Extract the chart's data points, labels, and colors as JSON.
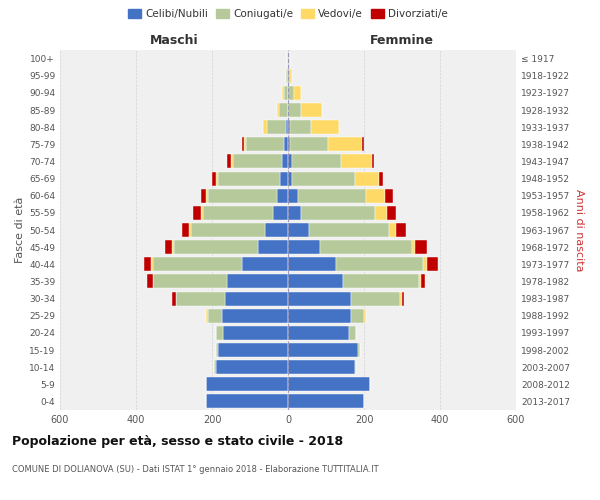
{
  "age_groups": [
    "0-4",
    "5-9",
    "10-14",
    "15-19",
    "20-24",
    "25-29",
    "30-34",
    "35-39",
    "40-44",
    "45-49",
    "50-54",
    "55-59",
    "60-64",
    "65-69",
    "70-74",
    "75-79",
    "80-84",
    "85-89",
    "90-94",
    "95-99",
    "100+"
  ],
  "birth_years": [
    "2013-2017",
    "2008-2012",
    "2003-2007",
    "1998-2002",
    "1993-1997",
    "1988-1992",
    "1983-1987",
    "1978-1982",
    "1973-1977",
    "1968-1972",
    "1963-1967",
    "1958-1962",
    "1953-1957",
    "1948-1952",
    "1943-1947",
    "1938-1942",
    "1933-1937",
    "1928-1932",
    "1923-1927",
    "1918-1922",
    "≤ 1917"
  ],
  "maschi_celibi": [
    215,
    215,
    190,
    185,
    170,
    175,
    165,
    160,
    120,
    80,
    60,
    40,
    30,
    20,
    15,
    10,
    5,
    0,
    0,
    0,
    0
  ],
  "maschi_coniugati": [
    0,
    0,
    5,
    5,
    20,
    35,
    130,
    195,
    235,
    220,
    195,
    185,
    180,
    165,
    130,
    100,
    50,
    25,
    10,
    5,
    2
  ],
  "maschi_vedovi": [
    0,
    0,
    0,
    0,
    0,
    5,
    0,
    0,
    5,
    5,
    5,
    5,
    5,
    5,
    5,
    5,
    10,
    5,
    5,
    0,
    0
  ],
  "maschi_divorziati": [
    0,
    0,
    0,
    0,
    0,
    0,
    10,
    15,
    20,
    20,
    20,
    20,
    15,
    10,
    10,
    5,
    0,
    0,
    0,
    0,
    0
  ],
  "femmine_celibi": [
    200,
    215,
    175,
    185,
    160,
    165,
    165,
    145,
    125,
    85,
    55,
    35,
    25,
    10,
    10,
    5,
    5,
    0,
    0,
    0,
    0
  ],
  "femmine_coniugati": [
    0,
    0,
    5,
    5,
    20,
    35,
    130,
    200,
    230,
    240,
    210,
    195,
    180,
    165,
    130,
    100,
    55,
    35,
    15,
    5,
    2
  ],
  "femmine_vedovi": [
    0,
    0,
    0,
    0,
    0,
    5,
    5,
    5,
    10,
    10,
    20,
    30,
    50,
    65,
    80,
    90,
    75,
    55,
    20,
    5,
    2
  ],
  "femmine_divorziati": [
    0,
    0,
    0,
    0,
    0,
    0,
    5,
    10,
    30,
    30,
    25,
    25,
    20,
    10,
    5,
    5,
    0,
    0,
    0,
    0,
    0
  ],
  "colors": {
    "celibi": "#4472c4",
    "coniugati": "#b5c99a",
    "vedovi": "#ffd966",
    "divorziati": "#c00000"
  },
  "title": "Popolazione per età, sesso e stato civile - 2018",
  "subtitle": "COMUNE DI DOLIANOVA (SU) - Dati ISTAT 1° gennaio 2018 - Elaborazione TUTTITALIA.IT",
  "xlabel_left": "Maschi",
  "xlabel_right": "Femmine",
  "ylabel_left": "Fasce di età",
  "ylabel_right": "Anni di nascita",
  "xlim": 600,
  "bg_color": "#f0f0f0",
  "grid_color": "#cccccc"
}
